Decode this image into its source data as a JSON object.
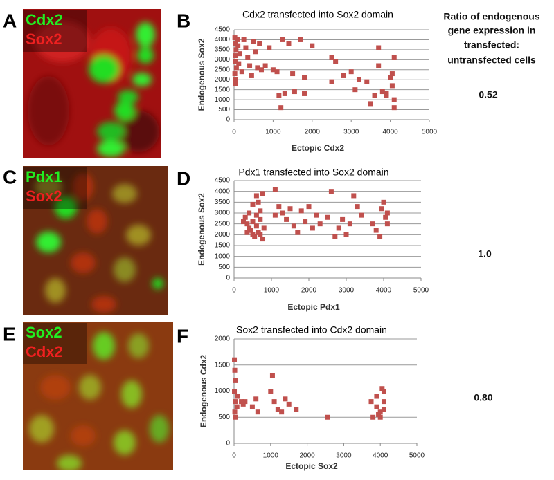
{
  "panel_letters": [
    "A",
    "B",
    "C",
    "D",
    "E",
    "F"
  ],
  "image_labels": [
    [
      "Cdx2",
      "Sox2"
    ],
    [
      "Pdx1",
      "Sox2"
    ],
    [
      "Sox2",
      "Cdx2"
    ]
  ],
  "ratio_heading": [
    "Ratio of endogenous",
    "gene expression in",
    "transfected:",
    "untransfected cells"
  ],
  "ratios": [
    "0.52",
    "1.0",
    "0.80"
  ],
  "chart_data": [
    {
      "type": "scatter",
      "title": "Cdx2 transfected into Sox2 domain",
      "x_label": "Ectopic Cdx2",
      "y_label": "Endogenous Sox2",
      "color": "#c0504d",
      "grid": true,
      "xlim": [
        0,
        5000
      ],
      "ylim": [
        0,
        4500
      ],
      "xticks": [
        0,
        1000,
        2000,
        3000,
        4000,
        5000
      ],
      "yticks": [
        0,
        500,
        1000,
        1500,
        2000,
        2500,
        3000,
        3500,
        4000,
        4500
      ],
      "x": [
        20,
        30,
        50,
        40,
        30,
        60,
        20,
        40,
        30,
        80,
        100,
        150,
        120,
        200,
        250,
        300,
        350,
        400,
        450,
        500,
        550,
        600,
        700,
        650,
        800,
        900,
        1000,
        1100,
        1150,
        1200,
        1250,
        1300,
        1400,
        1500,
        1550,
        1700,
        1800,
        1800,
        2000,
        2500,
        2500,
        2600,
        2800,
        3000,
        3100,
        3200,
        3400,
        3500,
        3600,
        3700,
        3700,
        3800,
        3900,
        4000,
        4050,
        4100,
        4100,
        4100,
        4050,
        3900
      ],
      "y": [
        4100,
        3800,
        3500,
        3200,
        2900,
        2600,
        2300,
        2000,
        1800,
        4000,
        3700,
        3300,
        2800,
        2400,
        4000,
        3600,
        3100,
        2700,
        2200,
        3900,
        3400,
        2600,
        2500,
        3800,
        2700,
        3600,
        2500,
        2400,
        1200,
        600,
        4000,
        1300,
        3800,
        2300,
        1400,
        4000,
        2100,
        1300,
        3700,
        3100,
        1900,
        2900,
        2200,
        2400,
        1500,
        2000,
        1900,
        800,
        1200,
        3600,
        2700,
        1400,
        1200,
        2100,
        1700,
        1000,
        600,
        3100,
        2300,
        1300
      ]
    },
    {
      "type": "scatter",
      "title": "Pdx1 transfected into Sox2 domain",
      "x_label": "Ectopic Pdx1",
      "y_label": "Endogenous Sox2",
      "color": "#c0504d",
      "grid": true,
      "xlim": [
        0,
        5000
      ],
      "ylim": [
        0,
        4500
      ],
      "xticks": [
        0,
        1000,
        2000,
        3000,
        4000,
        5000
      ],
      "yticks": [
        0,
        500,
        1000,
        1500,
        2000,
        2500,
        3000,
        3500,
        4000,
        4500
      ],
      "x": [
        300,
        350,
        400,
        450,
        500,
        500,
        550,
        600,
        600,
        650,
        700,
        700,
        750,
        800,
        750,
        400,
        600,
        700,
        500,
        650,
        250,
        350,
        1100,
        1100,
        1200,
        1300,
        1400,
        1500,
        1600,
        1700,
        1800,
        1900,
        2000,
        2100,
        2200,
        2300,
        2500,
        2600,
        2700,
        2800,
        2900,
        3000,
        3100,
        3200,
        3300,
        3400,
        3700,
        3800,
        3900,
        4000,
        4100,
        4100,
        4050,
        3950
      ],
      "y": [
        2800,
        2500,
        3000,
        2200,
        2600,
        3400,
        1900,
        3800,
        2400,
        2100,
        3100,
        2700,
        3900,
        2300,
        1800,
        2300,
        2900,
        2000,
        2000,
        3500,
        2600,
        2100,
        4100,
        2900,
        3300,
        3000,
        2700,
        3200,
        2400,
        2100,
        3100,
        2600,
        3300,
        2300,
        2900,
        2500,
        2800,
        4000,
        1900,
        2300,
        2700,
        2000,
        2500,
        3800,
        3300,
        2900,
        2500,
        2200,
        1900,
        3500,
        3000,
        2500,
        2800,
        3200
      ]
    },
    {
      "type": "scatter",
      "title": "Sox2 transfected into Cdx2 domain",
      "x_label": "Ectopic Sox2",
      "y_label": "Endogenous Cdx2",
      "color": "#c0504d",
      "grid": true,
      "xlim": [
        0,
        5000
      ],
      "ylim": [
        0,
        2000
      ],
      "xticks": [
        0,
        1000,
        2000,
        3000,
        4000,
        5000
      ],
      "yticks": [
        0,
        500,
        1000,
        1500,
        2000
      ],
      "x": [
        10,
        20,
        30,
        10,
        40,
        20,
        30,
        80,
        100,
        200,
        300,
        250,
        500,
        600,
        650,
        1000,
        1050,
        1100,
        1200,
        1300,
        1400,
        1500,
        1700,
        2550,
        3750,
        3800,
        3900,
        3950,
        4000,
        4050,
        4100,
        4100,
        4100,
        4000,
        3900
      ],
      "y": [
        1600,
        1400,
        1200,
        1000,
        800,
        600,
        500,
        700,
        900,
        800,
        800,
        750,
        700,
        850,
        600,
        1000,
        1300,
        800,
        650,
        600,
        850,
        750,
        650,
        500,
        800,
        500,
        700,
        550,
        600,
        1050,
        1000,
        800,
        650,
        500,
        900
      ]
    }
  ]
}
